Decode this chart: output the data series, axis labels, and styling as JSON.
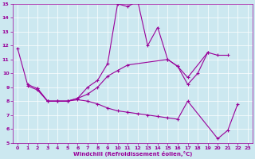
{
  "xlabel": "Windchill (Refroidissement éolien,°C)",
  "bg_color": "#cce8f0",
  "line_color": "#990099",
  "ylim": [
    5,
    15
  ],
  "xlim": [
    -0.5,
    23.5
  ],
  "yticks": [
    5,
    6,
    7,
    8,
    9,
    10,
    11,
    12,
    13,
    14,
    15
  ],
  "xticks": [
    0,
    1,
    2,
    3,
    4,
    5,
    6,
    7,
    8,
    9,
    10,
    11,
    12,
    13,
    14,
    15,
    16,
    17,
    18,
    19,
    20,
    21,
    22,
    23
  ],
  "line1": {
    "x": [
      0,
      1,
      2,
      3,
      4,
      5,
      6,
      7,
      8,
      9,
      10,
      11,
      12,
      13,
      14,
      15,
      16,
      17,
      18,
      19
    ],
    "y": [
      11.8,
      9.2,
      8.9,
      8.0,
      8.0,
      8.0,
      8.2,
      9.0,
      9.5,
      10.7,
      15.0,
      14.8,
      15.2,
      12.0,
      13.3,
      11.0,
      10.5,
      9.2,
      10.0,
      11.5
    ]
  },
  "line2": {
    "x": [
      1,
      2,
      3,
      4,
      5,
      6,
      7,
      8,
      9,
      10,
      11,
      15,
      16,
      17,
      19,
      20,
      21
    ],
    "y": [
      9.1,
      8.8,
      8.0,
      8.0,
      8.0,
      8.2,
      8.5,
      9.0,
      9.8,
      10.2,
      10.6,
      11.0,
      10.5,
      9.7,
      11.5,
      11.3,
      11.3
    ]
  },
  "line3": {
    "x": [
      2,
      3,
      4,
      5,
      6,
      7,
      8,
      9,
      10,
      11,
      12,
      13,
      14,
      15,
      16,
      17,
      20,
      21,
      22
    ],
    "y": [
      8.9,
      8.0,
      8.0,
      8.0,
      8.1,
      8.0,
      7.8,
      7.5,
      7.3,
      7.2,
      7.1,
      7.0,
      6.9,
      6.8,
      6.7,
      8.0,
      5.3,
      5.9,
      7.8
    ]
  }
}
